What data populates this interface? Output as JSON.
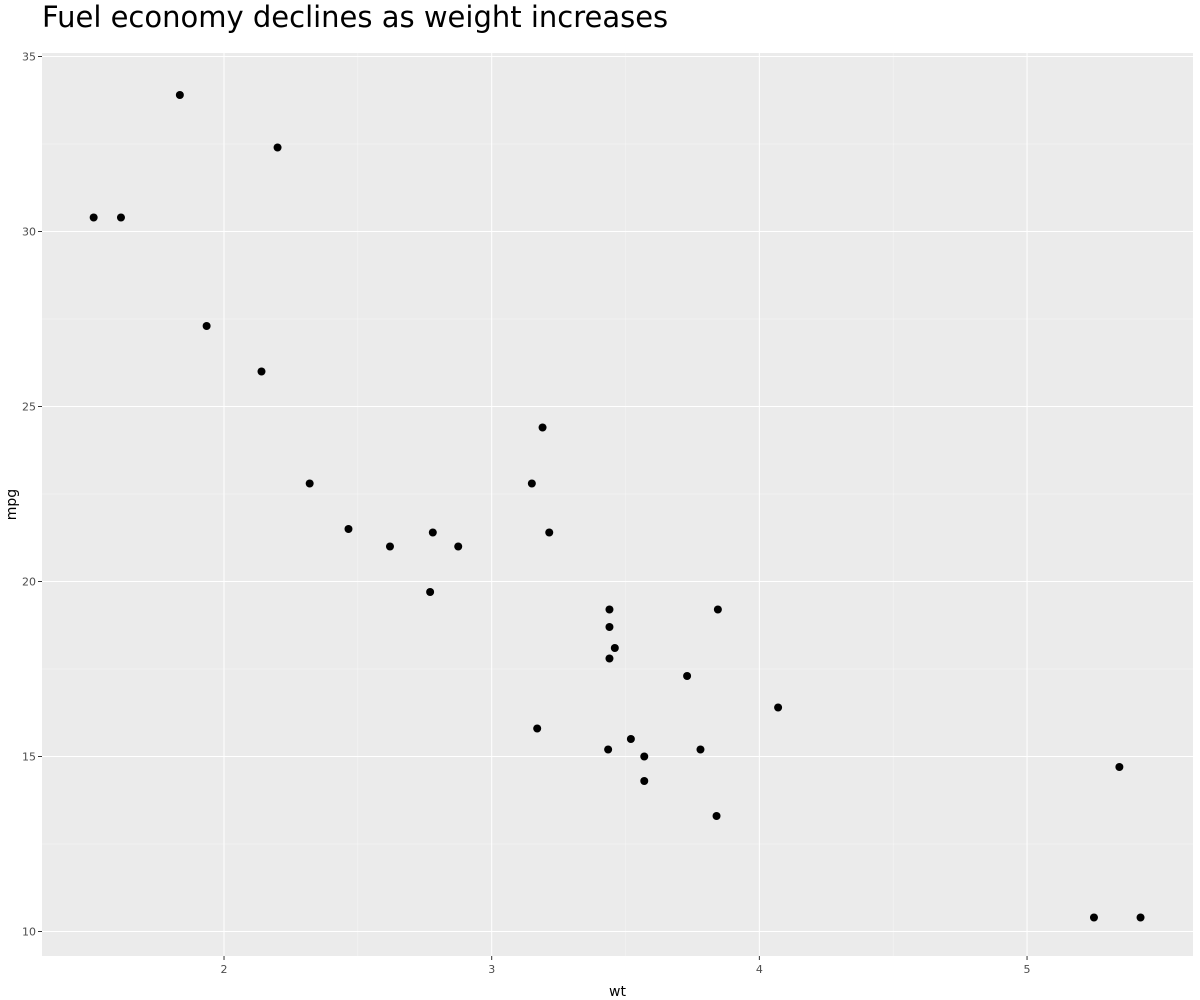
{
  "chart_data": {
    "type": "scatter",
    "title": "Fuel economy declines as weight increases",
    "xlabel": "wt",
    "ylabel": "mpg",
    "xlim": [
      1.32,
      5.62
    ],
    "ylim": [
      9.3,
      35.1
    ],
    "xticks": [
      2,
      3,
      4,
      5
    ],
    "yticks": [
      10,
      15,
      20,
      25,
      30,
      35
    ],
    "grid": true,
    "legend": "none",
    "points": [
      {
        "x": 2.62,
        "y": 21.0
      },
      {
        "x": 2.875,
        "y": 21.0
      },
      {
        "x": 2.32,
        "y": 22.8
      },
      {
        "x": 3.215,
        "y": 21.4
      },
      {
        "x": 3.44,
        "y": 18.7
      },
      {
        "x": 3.46,
        "y": 18.1
      },
      {
        "x": 3.57,
        "y": 14.3
      },
      {
        "x": 3.19,
        "y": 24.4
      },
      {
        "x": 3.15,
        "y": 22.8
      },
      {
        "x": 3.44,
        "y": 19.2
      },
      {
        "x": 3.44,
        "y": 17.8
      },
      {
        "x": 4.07,
        "y": 16.4
      },
      {
        "x": 3.73,
        "y": 17.3
      },
      {
        "x": 3.78,
        "y": 15.2
      },
      {
        "x": 5.25,
        "y": 10.4
      },
      {
        "x": 5.424,
        "y": 10.4
      },
      {
        "x": 5.345,
        "y": 14.7
      },
      {
        "x": 2.2,
        "y": 32.4
      },
      {
        "x": 1.615,
        "y": 30.4
      },
      {
        "x": 1.835,
        "y": 33.9
      },
      {
        "x": 2.465,
        "y": 21.5
      },
      {
        "x": 3.52,
        "y": 15.5
      },
      {
        "x": 3.435,
        "y": 15.2
      },
      {
        "x": 3.84,
        "y": 13.3
      },
      {
        "x": 3.845,
        "y": 19.2
      },
      {
        "x": 1.935,
        "y": 27.3
      },
      {
        "x": 2.14,
        "y": 26.0
      },
      {
        "x": 1.513,
        "y": 30.4
      },
      {
        "x": 3.17,
        "y": 15.8
      },
      {
        "x": 2.77,
        "y": 19.7
      },
      {
        "x": 3.57,
        "y": 15.0
      },
      {
        "x": 2.78,
        "y": 21.4
      }
    ]
  },
  "colors": {
    "panel": "#ebebeb",
    "grid_major": "#ffffff",
    "point": "#000000",
    "tick_text": "#4d4d4d"
  }
}
